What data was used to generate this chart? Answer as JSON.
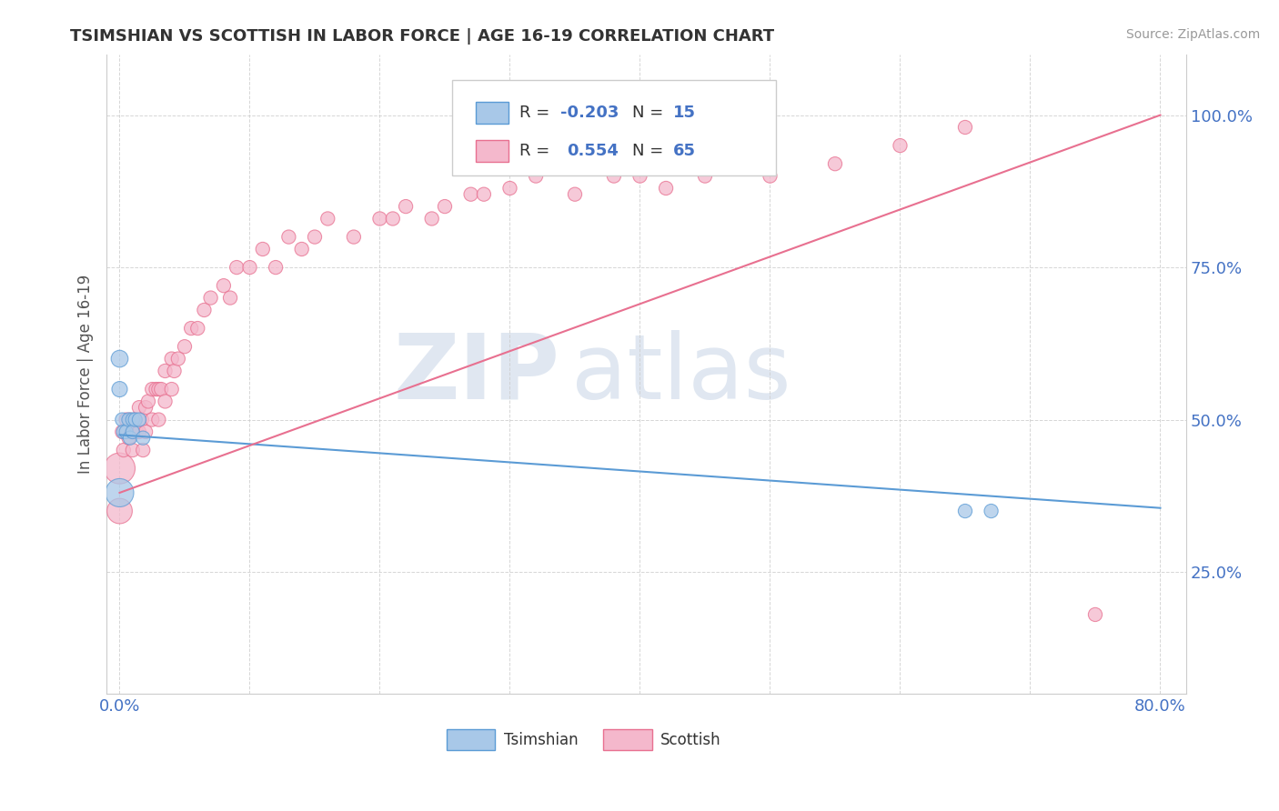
{
  "title": "TSIMSHIAN VS SCOTTISH IN LABOR FORCE | AGE 16-19 CORRELATION CHART",
  "source_text": "Source: ZipAtlas.com",
  "ylabel": "In Labor Force | Age 16-19",
  "xlim": [
    -0.01,
    0.82
  ],
  "ylim": [
    0.05,
    1.1
  ],
  "xticks": [
    0.0,
    0.1,
    0.2,
    0.3,
    0.4,
    0.5,
    0.6,
    0.7,
    0.8
  ],
  "xticklabels": [
    "0.0%",
    "",
    "",
    "",
    "",
    "",
    "",
    "",
    "80.0%"
  ],
  "yticks": [
    0.25,
    0.5,
    0.75,
    1.0
  ],
  "yticklabels": [
    "25.0%",
    "50.0%",
    "75.0%",
    "100.0%"
  ],
  "legend_r_tsimshian": "-0.203",
  "legend_n_tsimshian": "15",
  "legend_r_scottish": "0.554",
  "legend_n_scottish": "65",
  "tsimshian_color": "#a8c8e8",
  "scottish_color": "#f4b8cc",
  "tsimshian_edge_color": "#5b9bd5",
  "scottish_edge_color": "#e87090",
  "tsimshian_line_color": "#5b9bd5",
  "scottish_line_color": "#e87090",
  "background_color": "#ffffff",
  "watermark_zip": "ZIP",
  "watermark_atlas": "atlas",
  "tsimshian_x": [
    0.0,
    0.0,
    0.0,
    0.002,
    0.003,
    0.005,
    0.007,
    0.008,
    0.01,
    0.01,
    0.012,
    0.015,
    0.018,
    0.65,
    0.67
  ],
  "tsimshian_y": [
    0.6,
    0.55,
    0.38,
    0.5,
    0.48,
    0.48,
    0.5,
    0.47,
    0.5,
    0.48,
    0.5,
    0.5,
    0.47,
    0.35,
    0.35
  ],
  "tsimshian_sizes": [
    180,
    150,
    500,
    120,
    120,
    120,
    120,
    120,
    120,
    120,
    120,
    120,
    120,
    120,
    120
  ],
  "scottish_x": [
    0.0,
    0.0,
    0.002,
    0.003,
    0.005,
    0.007,
    0.008,
    0.01,
    0.01,
    0.012,
    0.013,
    0.015,
    0.015,
    0.017,
    0.018,
    0.02,
    0.02,
    0.022,
    0.025,
    0.025,
    0.028,
    0.03,
    0.03,
    0.032,
    0.035,
    0.035,
    0.04,
    0.04,
    0.042,
    0.045,
    0.05,
    0.055,
    0.06,
    0.065,
    0.07,
    0.08,
    0.085,
    0.09,
    0.1,
    0.11,
    0.12,
    0.13,
    0.14,
    0.15,
    0.16,
    0.18,
    0.2,
    0.21,
    0.22,
    0.24,
    0.25,
    0.27,
    0.28,
    0.3,
    0.32,
    0.35,
    0.38,
    0.4,
    0.42,
    0.45,
    0.5,
    0.55,
    0.6,
    0.65,
    0.75
  ],
  "scottish_y": [
    0.42,
    0.35,
    0.48,
    0.45,
    0.5,
    0.47,
    0.5,
    0.48,
    0.45,
    0.5,
    0.48,
    0.52,
    0.48,
    0.5,
    0.45,
    0.52,
    0.48,
    0.53,
    0.55,
    0.5,
    0.55,
    0.55,
    0.5,
    0.55,
    0.58,
    0.53,
    0.6,
    0.55,
    0.58,
    0.6,
    0.62,
    0.65,
    0.65,
    0.68,
    0.7,
    0.72,
    0.7,
    0.75,
    0.75,
    0.78,
    0.75,
    0.8,
    0.78,
    0.8,
    0.83,
    0.8,
    0.83,
    0.83,
    0.85,
    0.83,
    0.85,
    0.87,
    0.87,
    0.88,
    0.9,
    0.87,
    0.9,
    0.9,
    0.88,
    0.9,
    0.9,
    0.92,
    0.95,
    0.98,
    0.18
  ],
  "scottish_sizes": [
    600,
    400,
    120,
    120,
    120,
    120,
    120,
    120,
    120,
    120,
    120,
    120,
    120,
    120,
    120,
    120,
    120,
    120,
    120,
    120,
    120,
    120,
    120,
    120,
    120,
    120,
    120,
    120,
    120,
    120,
    120,
    120,
    120,
    120,
    120,
    120,
    120,
    120,
    120,
    120,
    120,
    120,
    120,
    120,
    120,
    120,
    120,
    120,
    120,
    120,
    120,
    120,
    120,
    120,
    120,
    120,
    120,
    120,
    120,
    120,
    120,
    120,
    120,
    120,
    120
  ],
  "tsim_line_x0": 0.0,
  "tsim_line_x1": 0.8,
  "tsim_line_y0": 0.475,
  "tsim_line_y1": 0.355,
  "scot_line_x0": 0.0,
  "scot_line_x1": 0.8,
  "scot_line_y0": 0.38,
  "scot_line_y1": 1.0
}
